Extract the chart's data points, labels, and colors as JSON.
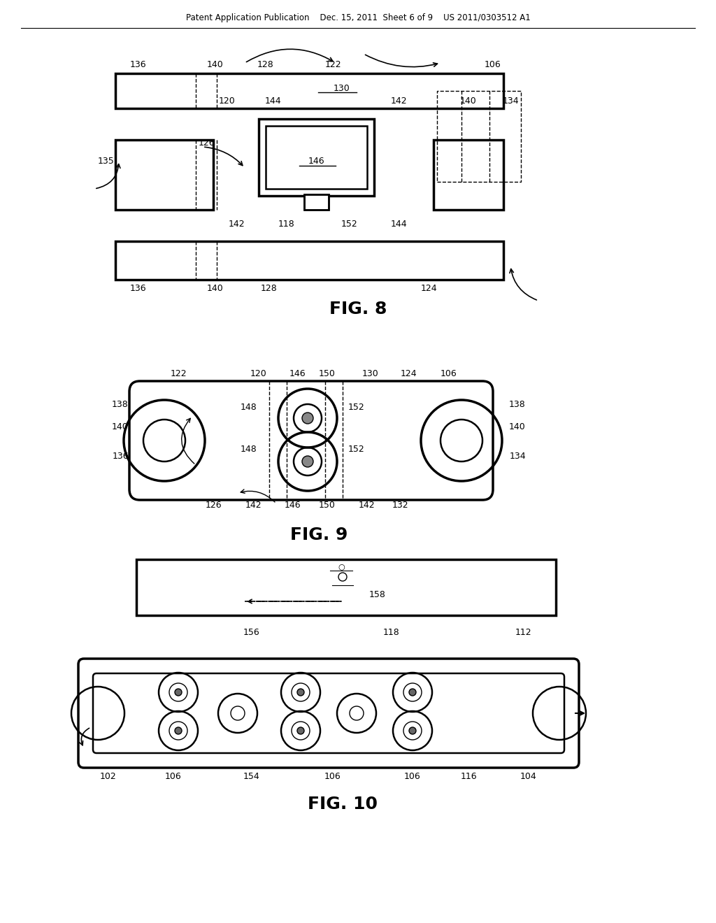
{
  "bg_color": "#ffffff",
  "line_color": "#000000",
  "header_text": "Patent Application Publication    Dec. 15, 2011  Sheet 6 of 9    US 2011/0303512 A1",
  "fig8_title": "FIG. 8",
  "fig9_title": "FIG. 9",
  "fig10_title": "FIG. 10"
}
